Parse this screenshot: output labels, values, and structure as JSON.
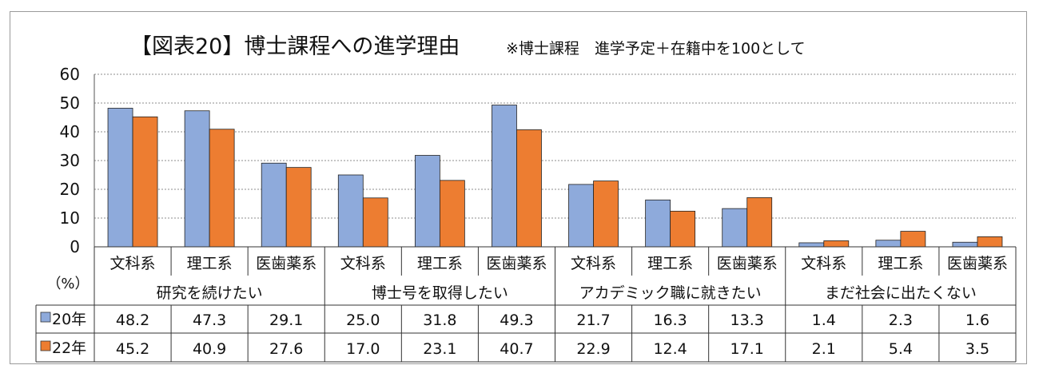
{
  "chart_data": {
    "type": "bar",
    "title": "【図表20】博士課程への進学理由",
    "subtitle": "※博士課程　進学予定＋在籍中を100として",
    "ylim": [
      0,
      60
    ],
    "yticks": [
      0,
      10,
      20,
      30,
      40,
      50,
      60
    ],
    "unit_label": "（%）",
    "grid": true,
    "groups": [
      {
        "label": "研究を続けたい",
        "categories": [
          "文科系",
          "理工系",
          "医歯薬系"
        ]
      },
      {
        "label": "博士号を取得したい",
        "categories": [
          "文科系",
          "理工系",
          "医歯薬系"
        ]
      },
      {
        "label": "アカデミック職に就きたい",
        "categories": [
          "文科系",
          "理工系",
          "医歯薬系"
        ]
      },
      {
        "label": "まだ社会に出たくない",
        "categories": [
          "文科系",
          "理工系",
          "医歯薬系"
        ]
      }
    ],
    "series": [
      {
        "name": "20年",
        "color": "#8eaadb",
        "values": [
          48.2,
          47.3,
          29.1,
          25.0,
          31.8,
          49.3,
          21.7,
          16.3,
          13.3,
          1.4,
          2.3,
          1.6
        ],
        "labels": [
          "48.2",
          "47.3",
          "29.1",
          "25.0",
          "31.8",
          "49.3",
          "21.7",
          "16.3",
          "13.3",
          "1.4",
          "2.3",
          "1.6"
        ]
      },
      {
        "name": "22年",
        "color": "#ed7d31",
        "values": [
          45.2,
          40.9,
          27.6,
          17.0,
          23.1,
          40.7,
          22.9,
          12.4,
          17.1,
          2.1,
          5.4,
          3.5
        ],
        "labels": [
          "45.2",
          "40.9",
          "27.6",
          "17.0",
          "23.1",
          "40.7",
          "22.9",
          "12.4",
          "17.1",
          "2.1",
          "5.4",
          "3.5"
        ]
      }
    ]
  }
}
